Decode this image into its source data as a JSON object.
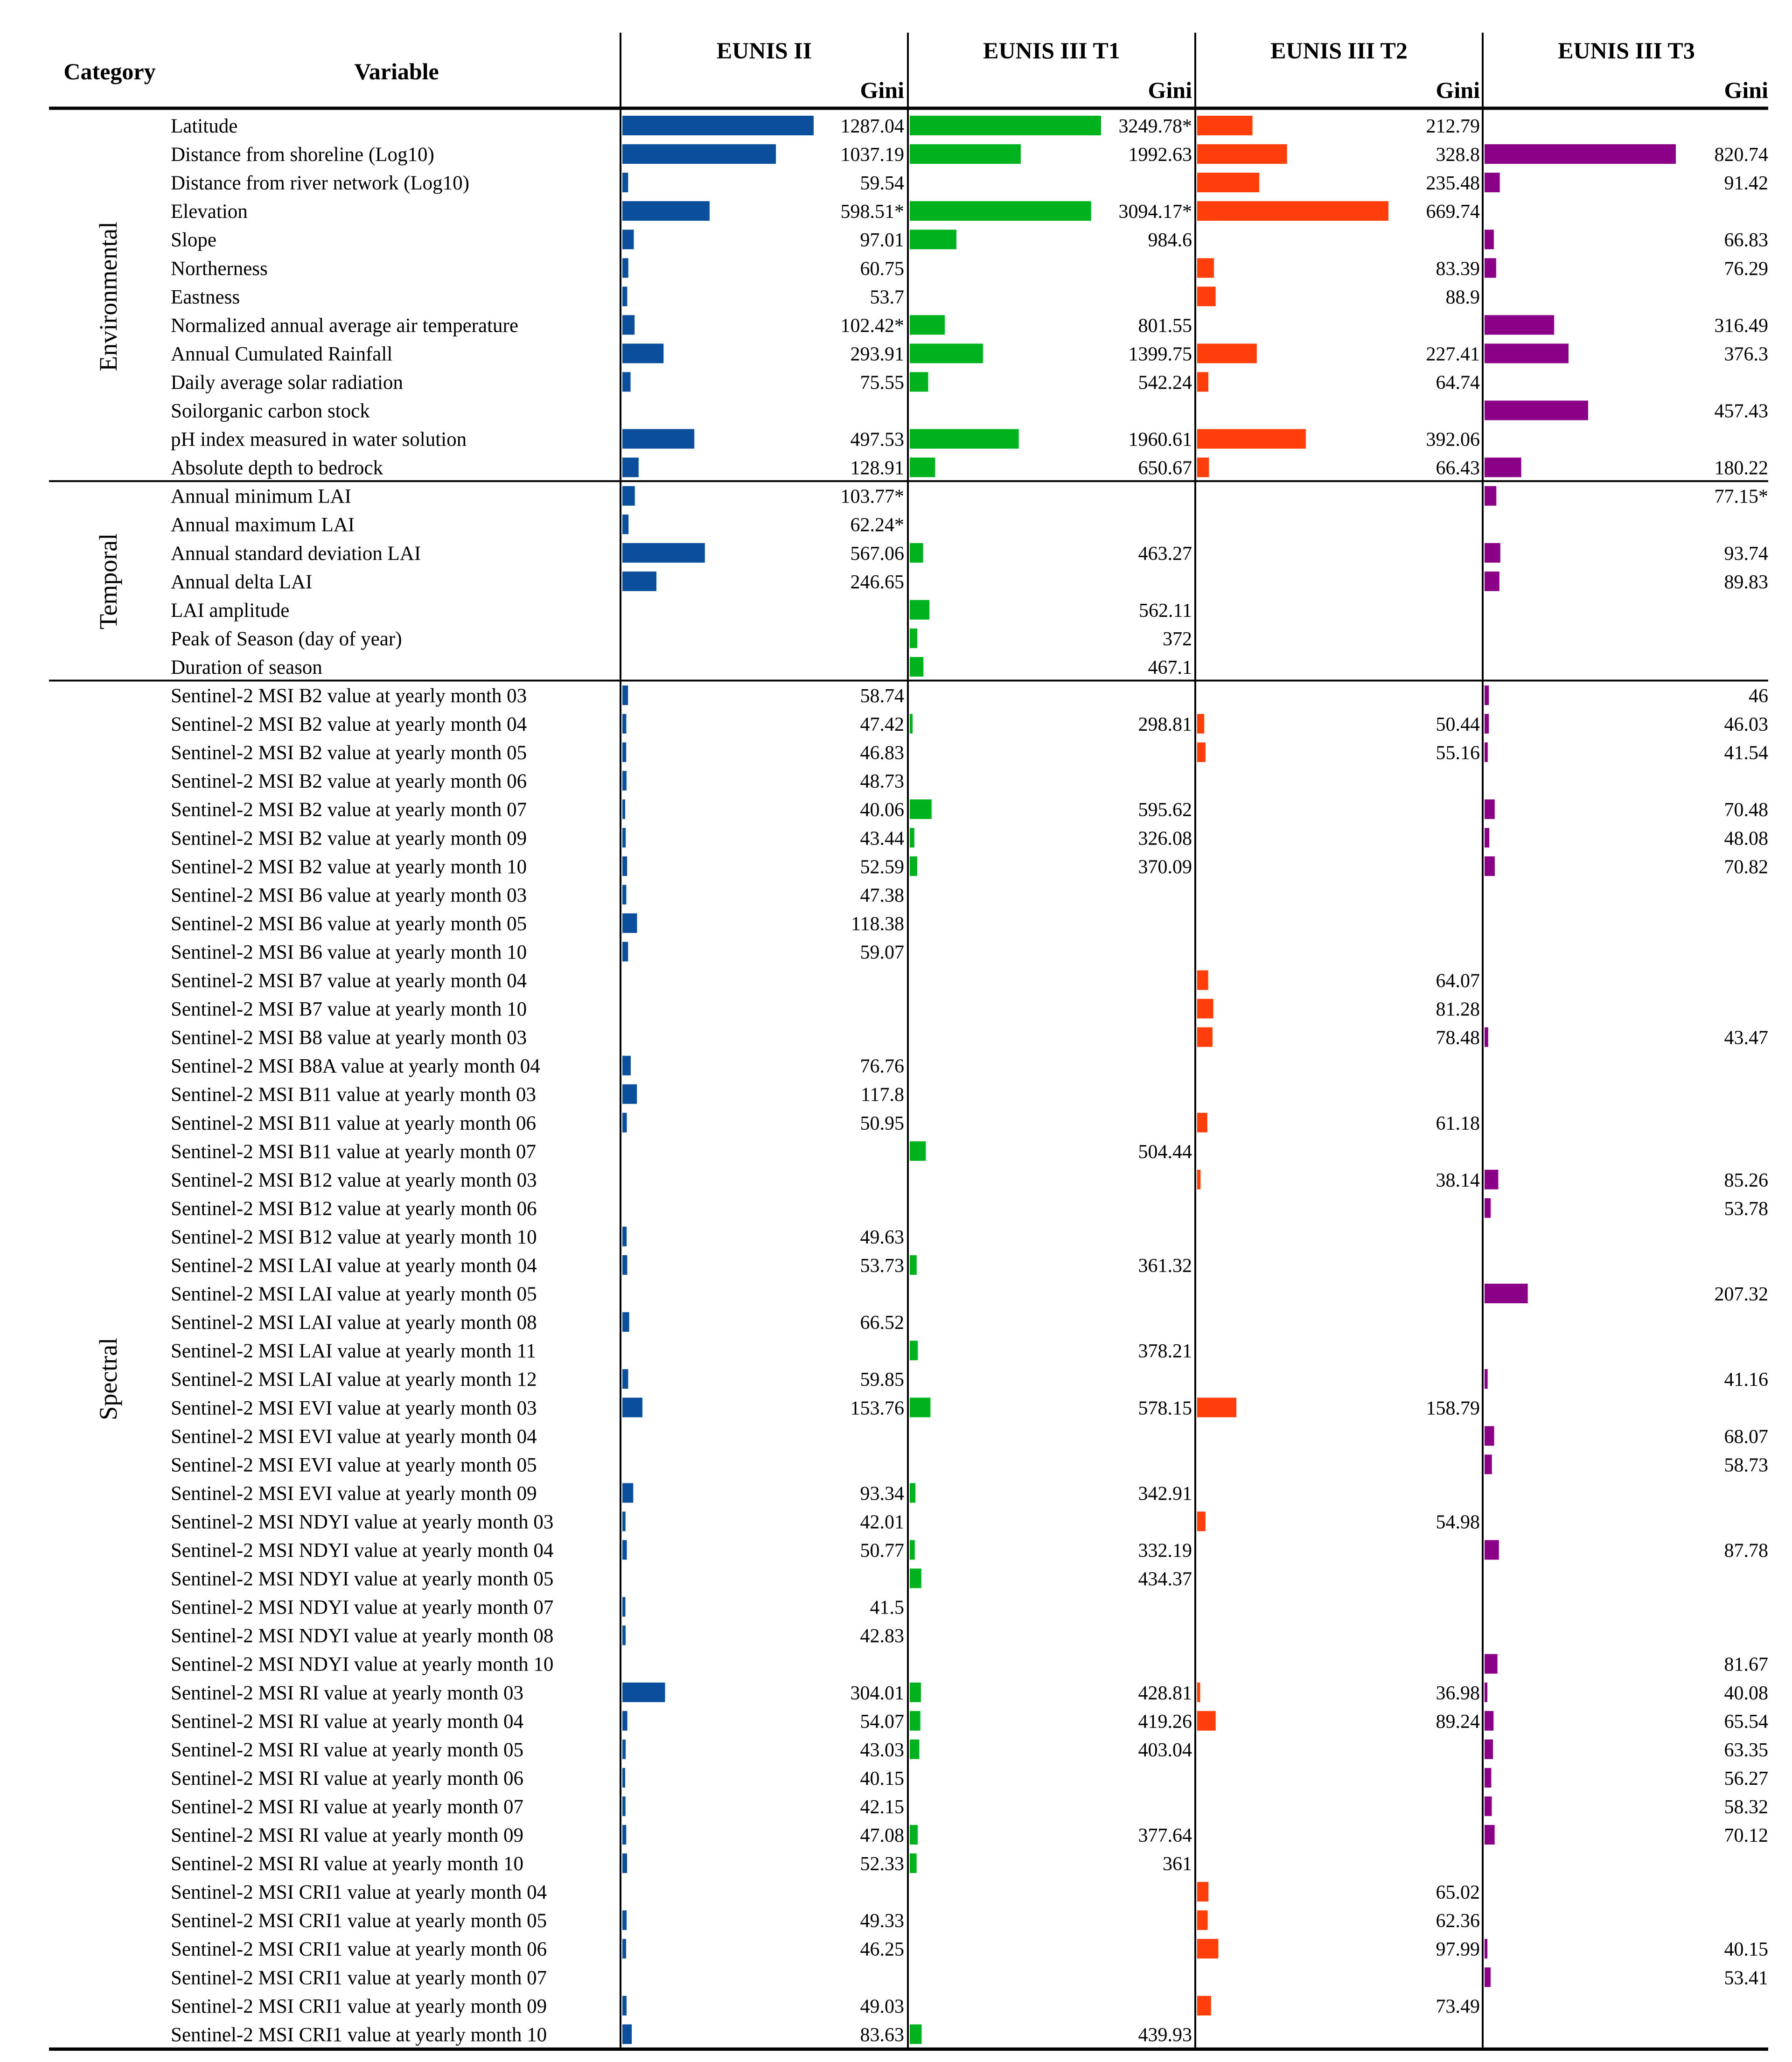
{
  "chart_data": {
    "type": "bar",
    "title": "",
    "headers": {
      "category": "Category",
      "variable": "Variable",
      "gini": "Gini",
      "series": [
        "EUNIS II",
        "EUNIS III T1",
        "EUNIS III T2",
        "EUNIS III T3"
      ]
    },
    "series_colors": [
      "#0B4F9C",
      "#00B21E",
      "#FF3E0C",
      "#8A0086"
    ],
    "groups": [
      {
        "name": "Environmental",
        "start": 0,
        "end": 12
      },
      {
        "name": "Temporal",
        "start": 13,
        "end": 19
      },
      {
        "name": "Spectral",
        "start": 20,
        "end": 68
      }
    ],
    "rows": [
      {
        "label": "Latitude",
        "values": [
          "1287.04",
          "3249.78*",
          "212.79",
          null
        ]
      },
      {
        "label": "Distance from shoreline (Log10)",
        "values": [
          "1037.19",
          "1992.63",
          "328.8",
          "820.74"
        ]
      },
      {
        "label": "Distance from river network (Log10)",
        "values": [
          "59.54",
          null,
          "235.48",
          "91.42"
        ]
      },
      {
        "label": "Elevation",
        "values": [
          "598.51*",
          "3094.17*",
          "669.74",
          null
        ]
      },
      {
        "label": "Slope",
        "values": [
          "97.01",
          "984.6",
          null,
          "66.83"
        ]
      },
      {
        "label": "Northerness",
        "values": [
          "60.75",
          null,
          "83.39",
          "76.29"
        ]
      },
      {
        "label": "Eastness",
        "values": [
          "53.7",
          null,
          "88.9",
          null
        ]
      },
      {
        "label": "Normalized annual average air temperature",
        "values": [
          "102.42*",
          "801.55",
          null,
          "316.49"
        ]
      },
      {
        "label": "Annual Cumulated Rainfall",
        "values": [
          "293.91",
          "1399.75",
          "227.41",
          "376.3"
        ]
      },
      {
        "label": "Daily average solar radiation",
        "values": [
          "75.55",
          "542.24",
          "64.74",
          null
        ]
      },
      {
        "label": "Soilorganic carbon stock",
        "values": [
          null,
          null,
          null,
          "457.43"
        ]
      },
      {
        "label": "pH index measured in water solution",
        "values": [
          "497.53",
          "1960.61",
          "392.06",
          null
        ]
      },
      {
        "label": "Absolute depth to bedrock",
        "values": [
          "128.91",
          "650.67",
          "66.43",
          "180.22"
        ]
      },
      {
        "label": "Annual minimum LAI",
        "values": [
          "103.77*",
          null,
          null,
          "77.15*"
        ]
      },
      {
        "label": "Annual maximum LAI",
        "values": [
          "62.24*",
          null,
          null,
          null
        ]
      },
      {
        "label": "Annual standard deviation LAI",
        "values": [
          "567.06",
          "463.27",
          null,
          "93.74"
        ]
      },
      {
        "label": "Annual delta LAI",
        "values": [
          "246.65",
          null,
          null,
          "89.83"
        ]
      },
      {
        "label": "LAI amplitude",
        "values": [
          null,
          "562.11",
          null,
          null
        ]
      },
      {
        "label": "Peak of Season (day of year)",
        "values": [
          null,
          "372",
          null,
          null
        ]
      },
      {
        "label": "Duration of season",
        "values": [
          null,
          "467.1",
          null,
          null
        ]
      },
      {
        "label": "Sentinel-2 MSI B2 value at yearly month 03",
        "values": [
          "58.74",
          null,
          null,
          "46"
        ]
      },
      {
        "label": "Sentinel-2 MSI B2 value at yearly month 04",
        "values": [
          "47.42",
          "298.81",
          "50.44",
          "46.03"
        ]
      },
      {
        "label": "Sentinel-2 MSI B2 value at yearly month 05",
        "values": [
          "46.83",
          null,
          "55.16",
          "41.54"
        ]
      },
      {
        "label": "Sentinel-2 MSI B2 value at yearly month 06",
        "values": [
          "48.73",
          null,
          null,
          null
        ]
      },
      {
        "label": "Sentinel-2 MSI B2 value at yearly month 07",
        "values": [
          "40.06",
          "595.62",
          null,
          "70.48"
        ]
      },
      {
        "label": "Sentinel-2 MSI B2 value at yearly month 09",
        "values": [
          "43.44",
          "326.08",
          null,
          "48.08"
        ]
      },
      {
        "label": "Sentinel-2 MSI B2 value at yearly month 10",
        "values": [
          "52.59",
          "370.09",
          null,
          "70.82"
        ]
      },
      {
        "label": "Sentinel-2 MSI B6 value at yearly month 03",
        "values": [
          "47.38",
          null,
          null,
          null
        ]
      },
      {
        "label": "Sentinel-2 MSI B6 value at yearly month 05",
        "values": [
          "118.38",
          null,
          null,
          null
        ]
      },
      {
        "label": "Sentinel-2 MSI B6 value at yearly month 10",
        "values": [
          "59.07",
          null,
          null,
          null
        ]
      },
      {
        "label": "Sentinel-2 MSI B7 value at yearly month 04",
        "values": [
          null,
          null,
          "64.07",
          null
        ]
      },
      {
        "label": "Sentinel-2 MSI B7 value at yearly month 10",
        "values": [
          null,
          null,
          "81.28",
          null
        ]
      },
      {
        "label": "Sentinel-2 MSI B8 value at yearly month 03",
        "values": [
          null,
          null,
          "78.48",
          "43.47"
        ]
      },
      {
        "label": "Sentinel-2 MSI B8A value at yearly month 04",
        "values": [
          "76.76",
          null,
          null,
          null
        ]
      },
      {
        "label": "Sentinel-2 MSI B11 value at yearly month 03",
        "values": [
          "117.8",
          null,
          null,
          null
        ]
      },
      {
        "label": "Sentinel-2 MSI B11 value at yearly month 06",
        "values": [
          "50.95",
          null,
          "61.18",
          null
        ]
      },
      {
        "label": "Sentinel-2 MSI B11 value at yearly month 07",
        "values": [
          null,
          "504.44",
          null,
          null
        ]
      },
      {
        "label": "Sentinel-2 MSI B12 value at yearly month 03",
        "values": [
          null,
          null,
          "38.14",
          "85.26"
        ]
      },
      {
        "label": "Sentinel-2 MSI B12 value at yearly month 06",
        "values": [
          null,
          null,
          null,
          "53.78"
        ]
      },
      {
        "label": "Sentinel-2 MSI B12 value at yearly month 10",
        "values": [
          "49.63",
          null,
          null,
          null
        ]
      },
      {
        "label": "Sentinel-2 MSI LAI value at yearly month 04",
        "values": [
          "53.73",
          "361.32",
          null,
          null
        ]
      },
      {
        "label": "Sentinel-2 MSI LAI value at yearly month 05",
        "values": [
          null,
          null,
          null,
          "207.32"
        ]
      },
      {
        "label": "Sentinel-2 MSI LAI value at yearly month 08",
        "values": [
          "66.52",
          null,
          null,
          null
        ]
      },
      {
        "label": "Sentinel-2 MSI LAI value at yearly month 11",
        "values": [
          null,
          "378.21",
          null,
          null
        ]
      },
      {
        "label": "Sentinel-2 MSI LAI value at yearly month 12",
        "values": [
          "59.85",
          null,
          null,
          "41.16"
        ]
      },
      {
        "label": "Sentinel-2 MSI EVI value at yearly month 03",
        "values": [
          "153.76",
          "578.15",
          "158.79",
          null
        ]
      },
      {
        "label": "Sentinel-2 MSI EVI value at yearly month 04",
        "values": [
          null,
          null,
          null,
          "68.07"
        ]
      },
      {
        "label": "Sentinel-2 MSI EVI value at yearly month 05",
        "values": [
          null,
          null,
          null,
          "58.73"
        ]
      },
      {
        "label": "Sentinel-2 MSI EVI value at yearly month 09",
        "values": [
          "93.34",
          "342.91",
          null,
          null
        ]
      },
      {
        "label": "Sentinel-2 MSI NDYI value at yearly month 03",
        "values": [
          "42.01",
          null,
          "54.98",
          null
        ]
      },
      {
        "label": "Sentinel-2 MSI NDYI value at yearly month 04",
        "values": [
          "50.77",
          "332.19",
          null,
          "87.78"
        ]
      },
      {
        "label": "Sentinel-2 MSI NDYI value at yearly month 05",
        "values": [
          null,
          "434.37",
          null,
          null
        ]
      },
      {
        "label": "Sentinel-2 MSI NDYI value at yearly month 07",
        "values": [
          "41.5",
          null,
          null,
          null
        ]
      },
      {
        "label": "Sentinel-2 MSI NDYI value at yearly month 08",
        "values": [
          "42.83",
          null,
          null,
          null
        ]
      },
      {
        "label": "Sentinel-2 MSI NDYI value at yearly month 10",
        "values": [
          null,
          null,
          null,
          "81.67"
        ]
      },
      {
        "label": "Sentinel-2 MSI RI value at yearly month 03",
        "values": [
          "304.01",
          "428.81",
          "36.98",
          "40.08"
        ]
      },
      {
        "label": "Sentinel-2 MSI RI value at yearly month 04",
        "values": [
          "54.07",
          "419.26",
          "89.24",
          "65.54"
        ]
      },
      {
        "label": "Sentinel-2 MSI RI value at yearly month 05",
        "values": [
          "43.03",
          "403.04",
          null,
          "63.35"
        ]
      },
      {
        "label": "Sentinel-2 MSI RI value at yearly month 06",
        "values": [
          "40.15",
          null,
          null,
          "56.27"
        ]
      },
      {
        "label": "Sentinel-2 MSI RI value at yearly month 07",
        "values": [
          "42.15",
          null,
          null,
          "58.32"
        ]
      },
      {
        "label": "Sentinel-2 MSI RI value at yearly month 09",
        "values": [
          "47.08",
          "377.64",
          null,
          "70.12"
        ]
      },
      {
        "label": "Sentinel-2 MSI RI value at yearly month 10",
        "values": [
          "52.33",
          "361",
          null,
          null
        ]
      },
      {
        "label": "Sentinel-2 MSI CRI1 value at yearly month 04",
        "values": [
          null,
          null,
          "65.02",
          null
        ]
      },
      {
        "label": "Sentinel-2 MSI CRI1 value at yearly month 05",
        "values": [
          "49.33",
          null,
          "62.36",
          null
        ]
      },
      {
        "label": "Sentinel-2 MSI CRI1 value at yearly month 06",
        "values": [
          "46.25",
          null,
          "97.99",
          "40.15"
        ]
      },
      {
        "label": "Sentinel-2 MSI CRI1 value at yearly month 07",
        "values": [
          null,
          null,
          null,
          "53.41"
        ]
      },
      {
        "label": "Sentinel-2 MSI CRI1 value at yearly month 09",
        "values": [
          "49.03",
          null,
          "73.49",
          null
        ]
      },
      {
        "label": "Sentinel-2 MSI CRI1 value at yearly month 10",
        "values": [
          "83.63",
          "439.93",
          null,
          null
        ]
      }
    ]
  }
}
